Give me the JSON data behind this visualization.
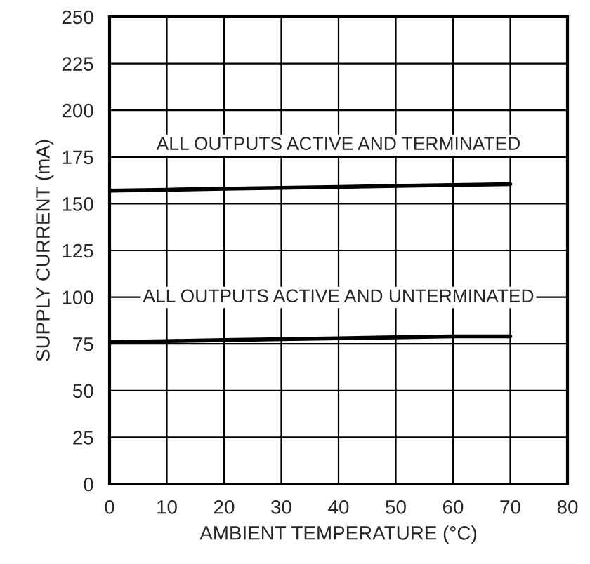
{
  "chart_data": {
    "type": "line",
    "xlabel": "AMBIENT TEMPERATURE (°C)",
    "ylabel": "SUPPLY CURRENT (mA)",
    "series": [
      {
        "x": [
          0,
          10,
          20,
          30,
          40,
          50,
          60,
          70
        ],
        "values": [
          157,
          157.5,
          158,
          158.5,
          159,
          159.5,
          160,
          160.5
        ],
        "color": "#000000"
      },
      {
        "x": [
          0,
          10,
          20,
          30,
          40,
          50,
          60,
          70
        ],
        "values": [
          76,
          76.5,
          77,
          77.5,
          78,
          78.5,
          79,
          79
        ],
        "color": "#000000"
      }
    ],
    "annotations": [
      "ALL OUTPUTS ACTIVE AND TERMINATED",
      "ALL OUTPUTS ACTIVE AND UNTERMINATED"
    ],
    "xlim": [
      0,
      80
    ],
    "xticks": [
      0,
      10,
      20,
      30,
      40,
      50,
      60,
      70,
      80
    ],
    "ylim": [
      0,
      250
    ],
    "yticks": [
      0,
      25,
      50,
      75,
      100,
      125,
      150,
      175,
      200,
      225,
      250
    ],
    "grid": true,
    "marker": "none",
    "line_style": "solid",
    "legend": false
  }
}
